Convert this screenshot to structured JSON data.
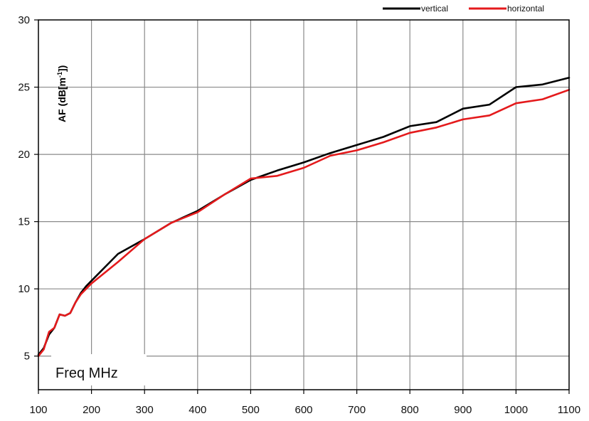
{
  "chart_data": {
    "type": "line",
    "x": [
      100,
      110,
      120,
      130,
      140,
      150,
      160,
      170,
      180,
      190,
      200,
      250,
      300,
      350,
      400,
      450,
      500,
      550,
      600,
      650,
      700,
      750,
      800,
      850,
      900,
      950,
      1000,
      1050,
      1100
    ],
    "series": [
      {
        "name": "vertical",
        "color": "#000000",
        "values": [
          5.1,
          5.6,
          6.6,
          7.1,
          8.1,
          8.0,
          8.2,
          9.0,
          9.7,
          10.2,
          10.6,
          12.6,
          13.7,
          14.9,
          15.8,
          17.0,
          18.1,
          18.8,
          19.4,
          20.1,
          20.7,
          21.3,
          22.1,
          22.4,
          23.4,
          23.7,
          25.0,
          25.2,
          25.7
        ]
      },
      {
        "name": "horizontal",
        "color": "#e41a1c",
        "values": [
          5.0,
          5.5,
          6.8,
          7.1,
          8.1,
          8.0,
          8.2,
          9.0,
          9.6,
          10.0,
          10.4,
          12.0,
          13.7,
          14.9,
          15.7,
          17.0,
          18.2,
          18.4,
          19.0,
          19.9,
          20.3,
          20.9,
          21.6,
          22.0,
          22.6,
          22.9,
          23.8,
          24.1,
          24.8
        ]
      }
    ],
    "xlabel": "Freq MHz",
    "ylabel": "AF (dB[m^-1])",
    "ylabel_base": "AF (dB[m",
    "ylabel_sup": "-1",
    "ylabel_end": "])",
    "xlim": [
      100,
      1100
    ],
    "ylim": [
      2.5,
      30
    ],
    "xticks": [
      100,
      200,
      300,
      400,
      500,
      600,
      700,
      800,
      900,
      1000,
      1100
    ],
    "yticks": [
      5,
      10,
      15,
      20,
      25,
      30
    ],
    "grid": true,
    "legend_position": "top-right"
  }
}
